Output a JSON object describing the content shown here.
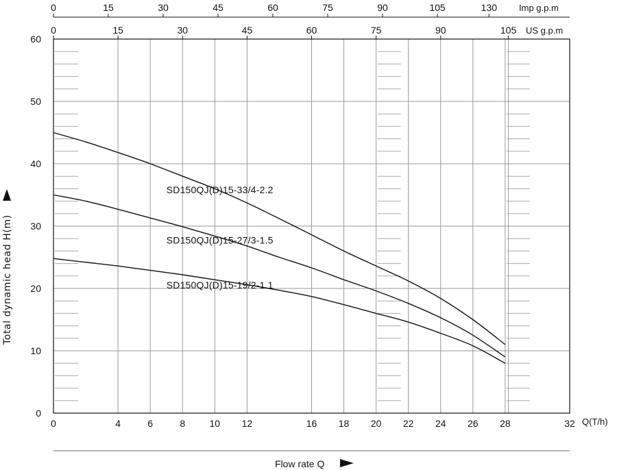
{
  "chart_data": {
    "type": "line",
    "xlabel": "Flow rate Q",
    "ylabel": "Total dynamic head  H(m)",
    "x_unit": "Q(T/h)",
    "xlim": [
      0,
      32
    ],
    "ylim": [
      0,
      60
    ],
    "x_ticks": [
      0,
      4,
      6,
      8,
      10,
      12,
      16,
      18,
      20,
      22,
      24,
      26,
      28,
      32
    ],
    "y_ticks": [
      0,
      10,
      20,
      30,
      40,
      50,
      60
    ],
    "grid": true,
    "secondary_axes": [
      {
        "name": "US g.p.m",
        "ticks": [
          {
            "label": "0",
            "q": 0
          },
          {
            "label": "15",
            "q": 4
          },
          {
            "label": "30",
            "q": 8
          },
          {
            "label": "45",
            "q": 12
          },
          {
            "label": "60",
            "q": 16
          },
          {
            "label": "75",
            "q": 20
          },
          {
            "label": "90",
            "q": 24
          },
          {
            "label": "105",
            "q": 28.2
          }
        ]
      },
      {
        "name": "Imp g.p.m",
        "ticks": [
          {
            "label": "0",
            "q": 0
          },
          {
            "label": "15",
            "q": 3.4
          },
          {
            "label": "30",
            "q": 6.8
          },
          {
            "label": "45",
            "q": 10.2
          },
          {
            "label": "60",
            "q": 13.6
          },
          {
            "label": "75",
            "q": 17
          },
          {
            "label": "90",
            "q": 20.4
          },
          {
            "label": "105",
            "q": 23.8
          },
          {
            "label": "130",
            "q": 27
          }
        ]
      }
    ],
    "series": [
      {
        "name": "SD150QJ(D)15-33/4-2.2",
        "x": [
          0,
          2,
          4,
          6,
          8,
          10,
          12,
          14,
          16,
          18,
          20,
          22,
          24,
          26,
          28
        ],
        "y": [
          45,
          43.5,
          41.8,
          40,
          38,
          36,
          33.7,
          31.2,
          28.6,
          26,
          23.6,
          21.2,
          18.4,
          15,
          11
        ]
      },
      {
        "name": "SD150QJ(D)15-27/3-1.5",
        "x": [
          0,
          2,
          4,
          6,
          8,
          10,
          12,
          14,
          16,
          18,
          20,
          22,
          24,
          26,
          28
        ],
        "y": [
          35,
          34,
          32.7,
          31.3,
          29.9,
          28.4,
          26.8,
          25,
          23.3,
          21.4,
          19.6,
          17.6,
          15.3,
          12.5,
          9
        ]
      },
      {
        "name": "SD150QJ(D)15-19/2-1.1",
        "x": [
          0,
          2,
          4,
          6,
          8,
          10,
          12,
          14,
          16,
          18,
          20,
          22,
          24,
          26,
          28
        ],
        "y": [
          24.8,
          24.2,
          23.6,
          22.9,
          22.2,
          21.4,
          20.6,
          19.7,
          18.7,
          17.4,
          16,
          14.6,
          12.8,
          10.8,
          8
        ]
      }
    ],
    "series_label_positions": [
      {
        "x": 7,
        "y": 35.3
      },
      {
        "x": 7,
        "y": 27.2
      },
      {
        "x": 7,
        "y": 20
      }
    ],
    "colors": {
      "line": "#111111",
      "grid": "#999999",
      "minor_tick": "#aaaaaa"
    }
  }
}
